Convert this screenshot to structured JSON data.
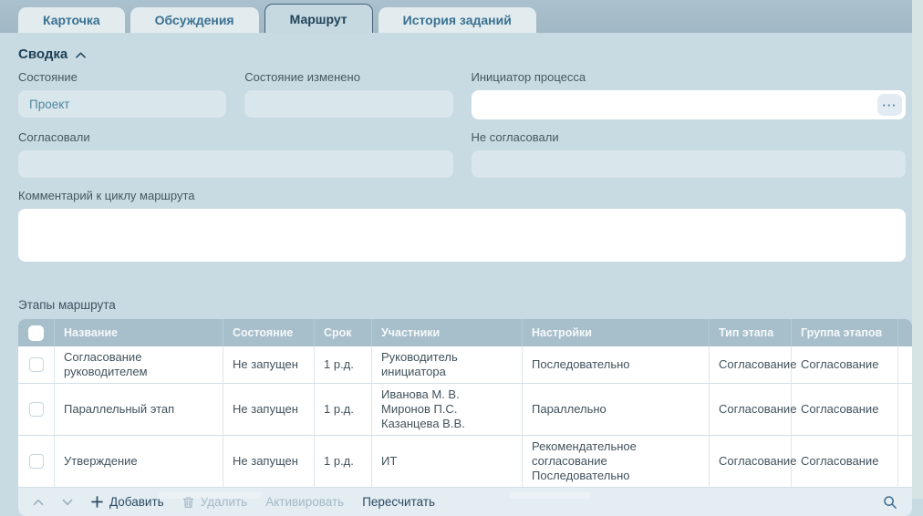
{
  "tabs": [
    {
      "label": "Карточка",
      "active": false
    },
    {
      "label": "Обсуждения",
      "active": false
    },
    {
      "label": "Маршрут",
      "active": true
    },
    {
      "label": "История заданий",
      "active": false
    }
  ],
  "summary": {
    "title": "Сводка",
    "fields": {
      "state": {
        "label": "Состояние",
        "value": "Проект"
      },
      "state_changed": {
        "label": "Состояние изменено",
        "value": ""
      },
      "initiator": {
        "label": "Инициатор процесса",
        "value": "",
        "more_button": "···"
      },
      "approved": {
        "label": "Согласовали",
        "value": ""
      },
      "not_approved": {
        "label": "Не согласовали",
        "value": ""
      },
      "comment": {
        "label": "Комментарий к циклу маршрута",
        "value": ""
      }
    }
  },
  "stages": {
    "title": "Этапы маршрута",
    "columns": [
      "Название",
      "Состояние",
      "Срок",
      "Участники",
      "Настройки",
      "Тип этапа",
      "Группа этапов"
    ],
    "rows": [
      {
        "name": "Согласование руководителем",
        "state": "Не запущен",
        "term": "1 р.д.",
        "participants": [
          "Руководитель инициатора"
        ],
        "settings": [
          "Последовательно"
        ],
        "type": "Согласование",
        "group": "Согласование"
      },
      {
        "name": "Параллельный этап",
        "state": "Не запущен",
        "term": "1 р.д.",
        "participants": [
          "Иванова М. В.",
          "Миронов П.С.",
          "Казанцева В.В."
        ],
        "settings": [
          "Параллельно"
        ],
        "type": "Согласование",
        "group": "Согласование"
      },
      {
        "name": "Утверждение",
        "state": "Не запущен",
        "term": "1 р.д.",
        "participants": [
          "ИТ"
        ],
        "settings": [
          "Рекомендательное согласование",
          "Последовательно"
        ],
        "type": "Согласование",
        "group": "Согласование"
      }
    ],
    "toolbar": {
      "add": "Добавить",
      "delete": "Удалить",
      "activate": "Активировать",
      "recalculate": "Пересчитать"
    }
  },
  "colors": {
    "page_background": "#c9dbe2",
    "tabbar_background": "#a5bcc8",
    "tab_text": "#3a7191",
    "active_tab_text": "#20435a",
    "table_header_background": "#a7becb",
    "action_text": "#2b4a63",
    "disabled_text": "#a4b9c6",
    "readonly_field_background": "#d9e6eb",
    "readonly_value_text": "#4e87a0"
  }
}
